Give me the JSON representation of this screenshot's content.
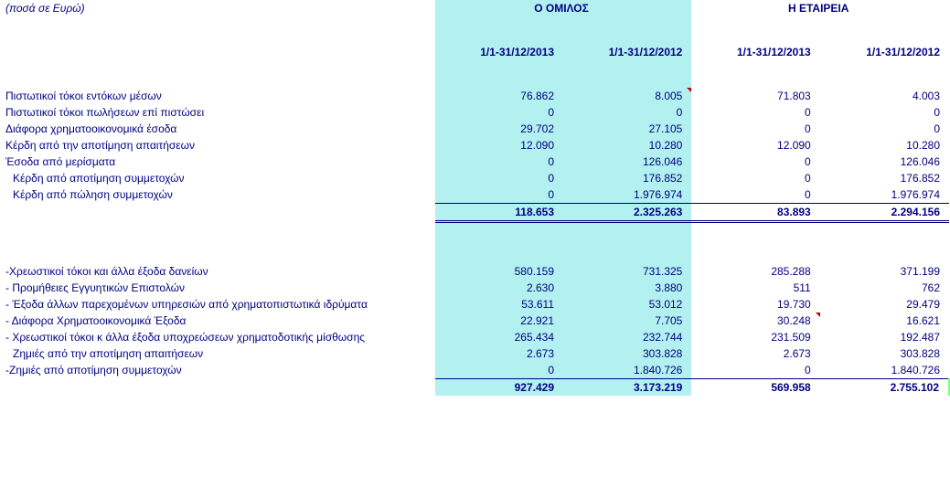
{
  "meta": {
    "currency_note": "(ποσά σε Ευρώ)"
  },
  "groups": {
    "group_label": "Ο ΟΜΙΛΟΣ",
    "company_label": "Η ΕΤΑΙΡΕΙΑ"
  },
  "periods": {
    "p1": "1/1-31/12/2013",
    "p2": "1/1-31/12/2012",
    "p3": "1/1-31/12/2013",
    "p4": "1/1-31/12/2012"
  },
  "section_a": {
    "rows": [
      {
        "label": "Πιστωτικοί τόκοι εντόκων μέσων",
        "v": [
          "76.862",
          "8.005",
          "71.803",
          "4.003"
        ],
        "mark2": true
      },
      {
        "label": "Πιστωτικοί τόκοι πωλήσεων επί πιστώσει",
        "v": [
          "0",
          "0",
          "0",
          "0"
        ]
      },
      {
        "label": "Διάφορα χρηματοοικονομικά έσοδα",
        "v": [
          "29.702",
          "27.105",
          "0",
          "0"
        ]
      },
      {
        "label": "Κέρδη από την αποτίμηση απαιτήσεων",
        "v": [
          "12.090",
          "10.280",
          "12.090",
          "10.280"
        ]
      },
      {
        "label": "Έσοδα από μερίσματα",
        "v": [
          "0",
          "126.046",
          "0",
          "126.046"
        ]
      },
      {
        "label": "Κέρδη από αποτίμηση συμμετοχών",
        "v": [
          "0",
          "176.852",
          "0",
          "176.852"
        ],
        "indent": true
      },
      {
        "label": "Κέρδη από πώληση συμμετοχών",
        "v": [
          "0",
          "1.976.974",
          "0",
          "1.976.974"
        ],
        "indent": true
      }
    ],
    "subtotal": [
      "118.653",
      "2.325.263",
      "83.893",
      "2.294.156"
    ]
  },
  "section_b": {
    "rows": [
      {
        "label": "-Χρεωστικοί τόκοι και άλλα έξοδα δανείων",
        "v": [
          "580.159",
          "731.325",
          "285.288",
          "371.199"
        ]
      },
      {
        "label": "- Προμήθειες Εγγυητικών Επιστολών",
        "v": [
          "2.630",
          "3.880",
          "511",
          "762"
        ]
      },
      {
        "label": "- Έξοδα άλλων παρεχομένων υπηρεσιών από χρηματοπιστωτικά ιδρύματα",
        "v": [
          "53.611",
          "53.012",
          "19.730",
          "29.479"
        ]
      },
      {
        "label": "- Διάφορα Χρηματοοικονομικά Έξοδα",
        "v": [
          "22.921",
          "7.705",
          "30.248",
          "16.621"
        ],
        "mark3": true
      },
      {
        "label": "- Χρεωστικοί τόκοι κ άλλα έξοδα υποχρεώσεων χρηματοδοτικής μίσθωσης",
        "v": [
          "265.434",
          "232.744",
          "231.509",
          "192.487"
        ]
      },
      {
        "label": "Ζημιές από την αποτίμηση απαιτήσεων",
        "v": [
          "2.673",
          "303.828",
          "2.673",
          "303.828"
        ],
        "indent": true
      },
      {
        "label": "-Ζημιές από αποτίμηση συμμετοχών",
        "v": [
          "0",
          "1.840.726",
          "0",
          "1.840.726"
        ]
      }
    ],
    "total": [
      "927.429",
      "3.173.219",
      "569.958",
      "2.755.102"
    ]
  },
  "style": {
    "highlight_color": "#b3f0f0",
    "text_color": "#000080"
  }
}
